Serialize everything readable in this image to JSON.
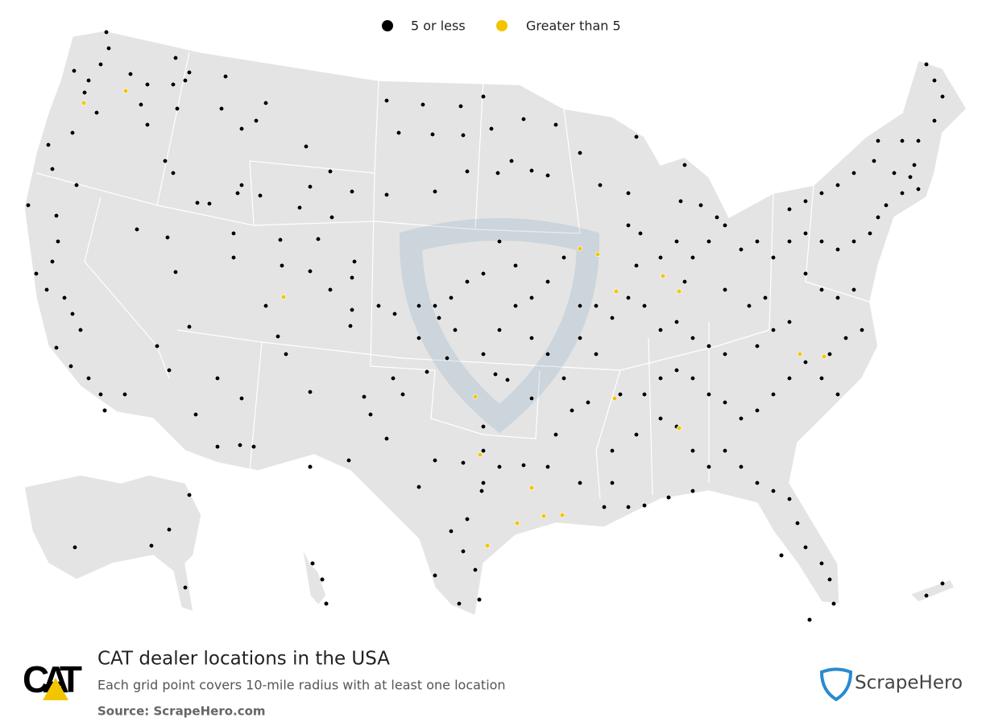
{
  "legend": {
    "items": [
      {
        "label": "5 or less",
        "color": "#000000"
      },
      {
        "label": "Greater than 5",
        "color": "#f2c500"
      }
    ]
  },
  "footer": {
    "logo": "CAT",
    "title": "CAT dealer locations in the USA",
    "subtitle": "Each grid point covers 10-mile radius with at least one location",
    "source": "Source: ScrapeHero.com",
    "brand": "ScrapeHero"
  }
}
